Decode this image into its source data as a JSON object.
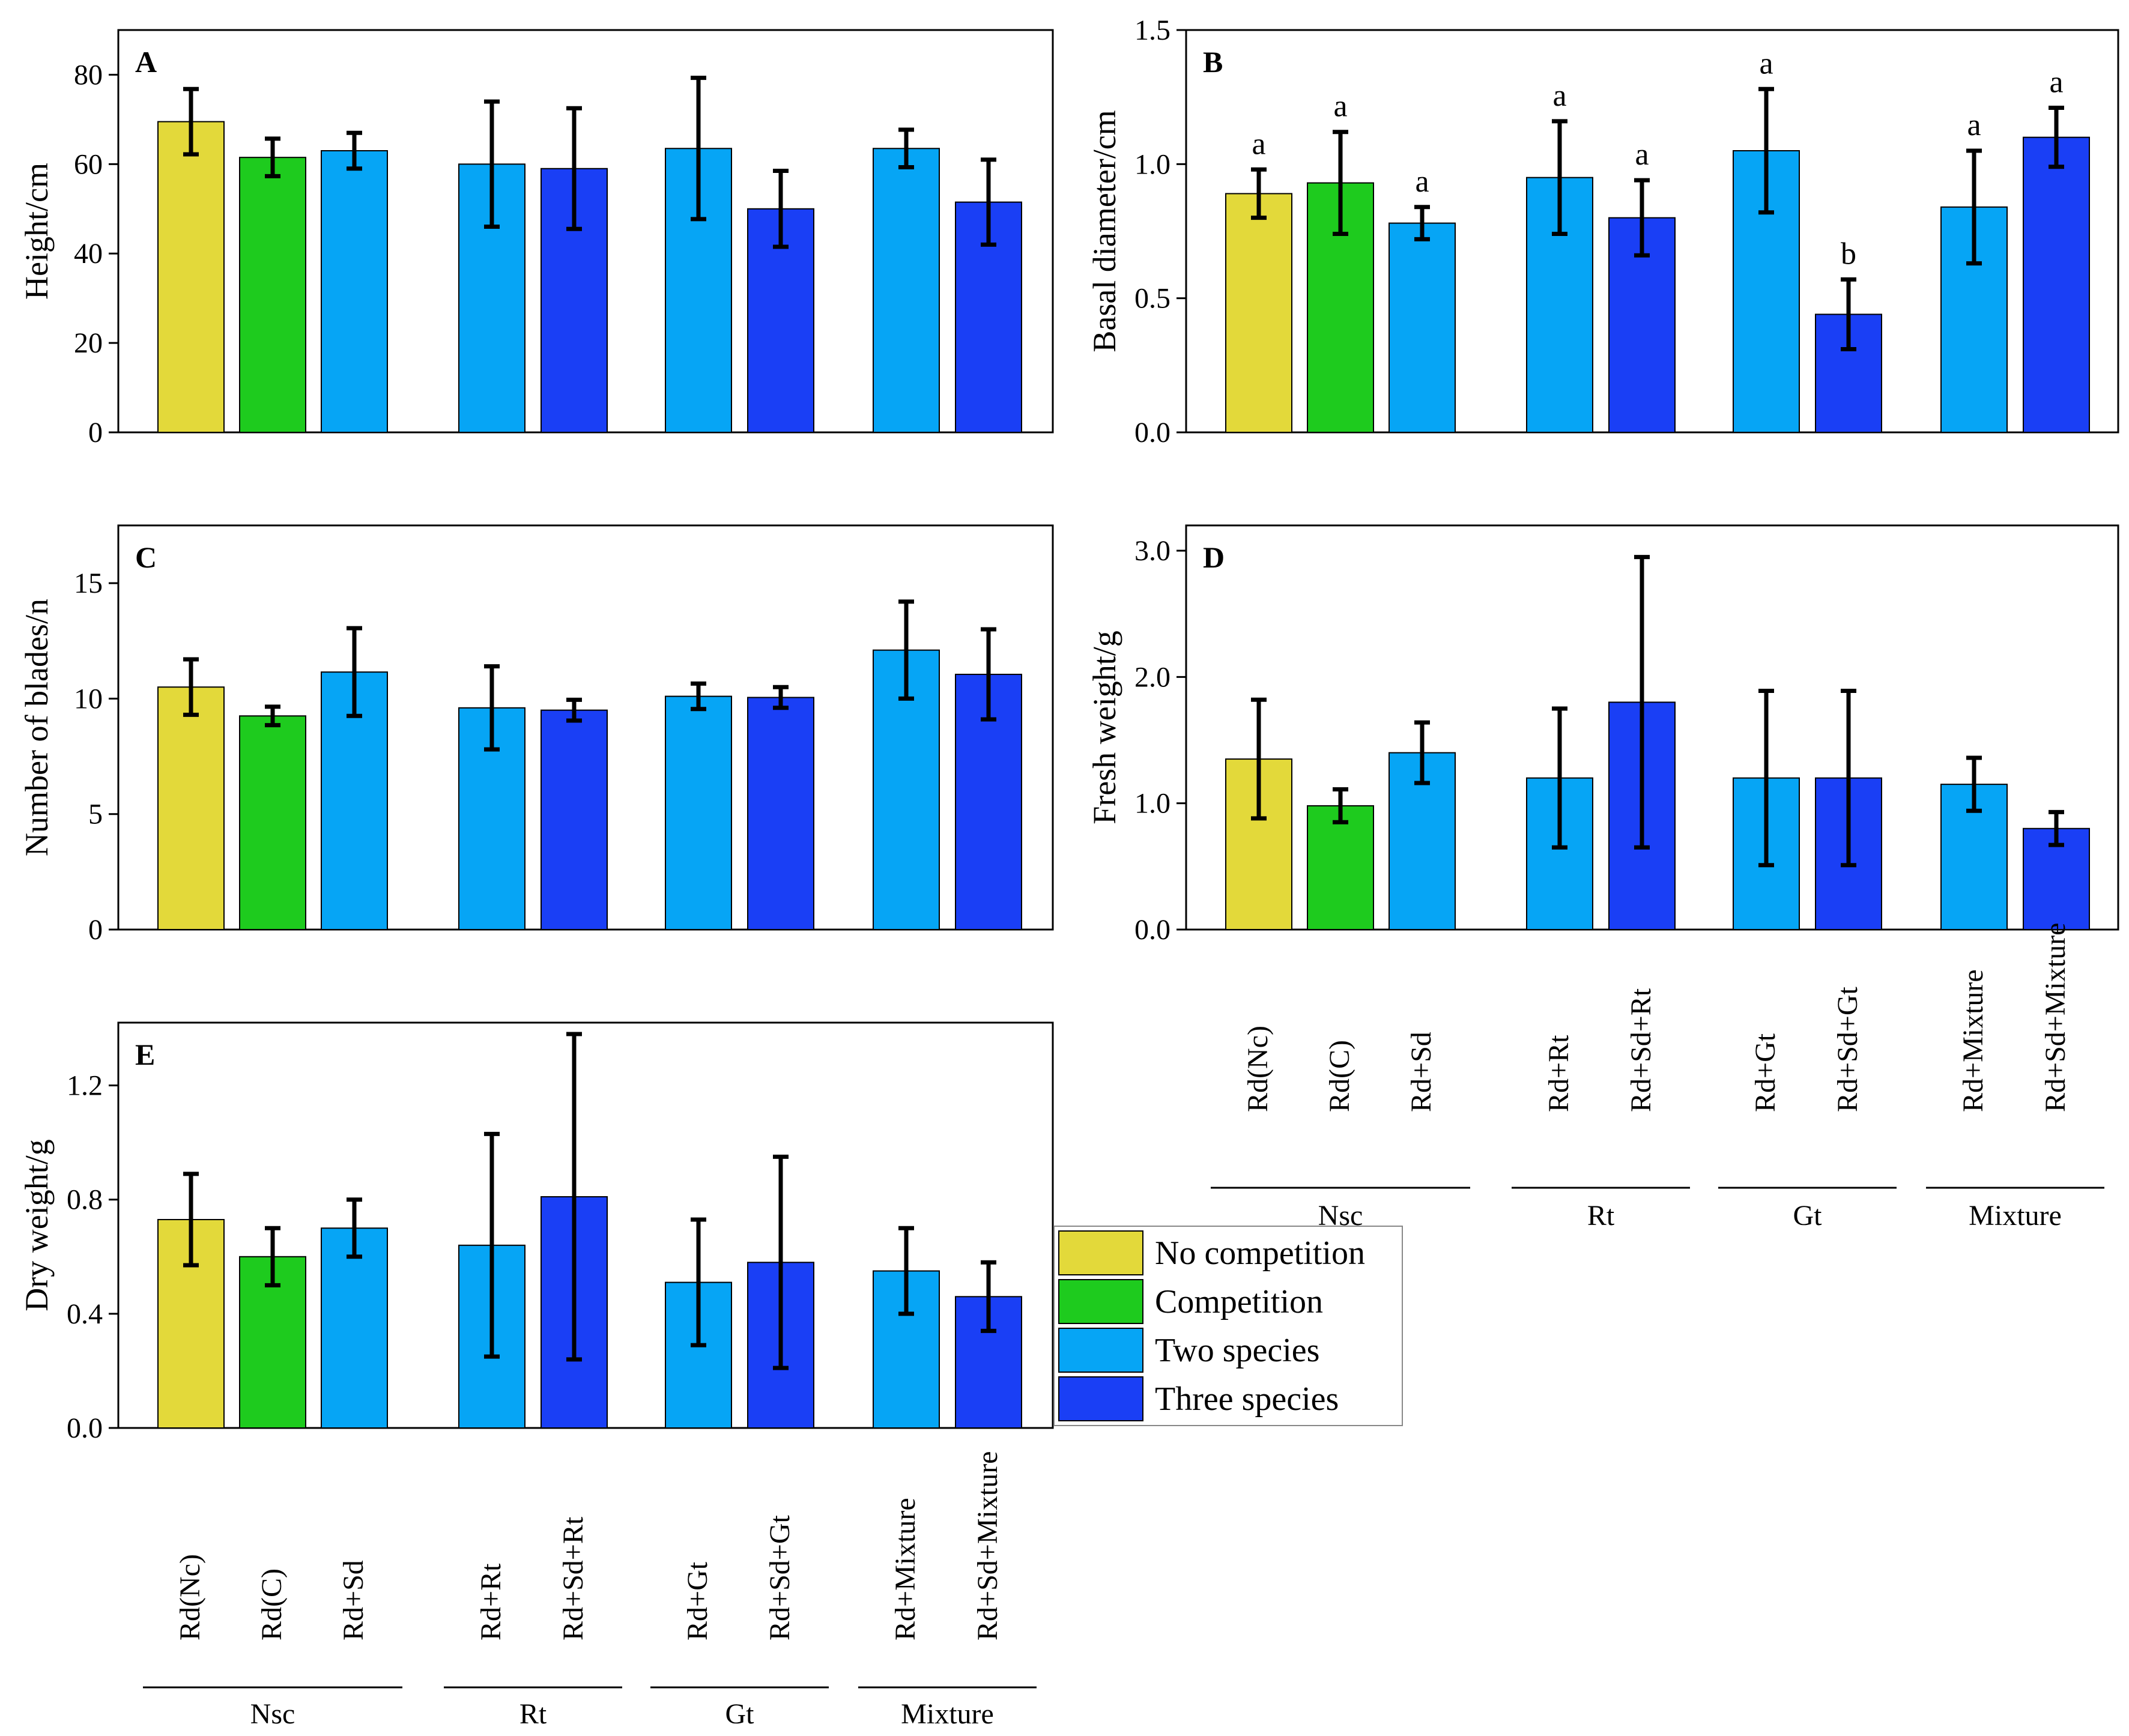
{
  "legend": {
    "items": [
      {
        "label": "No competition",
        "color": "#e3d93a"
      },
      {
        "label": "Competition",
        "color": "#1ecb1e"
      },
      {
        "label": "Two species",
        "color": "#06a5f5"
      },
      {
        "label": "Three species",
        "color": "#1a3ff5"
      }
    ]
  },
  "colors": {
    "no_competition": "#e3d93a",
    "competition": "#1ecb1e",
    "two_species": "#06a5f5",
    "three_species": "#1a3ff5",
    "frame": "#000000"
  },
  "x_axis": {
    "treatments": [
      "Rd(Nc)",
      "Rd(C)",
      "Rd+Sd",
      "Rd+Rt",
      "Rd+Sd+Rt",
      "Rd+Gt",
      "Rd+Sd+Gt",
      "Rd+Mixture",
      "Rd+Sd+Mixture"
    ],
    "groups": [
      {
        "label": "Nsc",
        "members": [
          0,
          1,
          2
        ]
      },
      {
        "label": "Rt",
        "members": [
          3,
          4
        ]
      },
      {
        "label": "Gt",
        "members": [
          5,
          6
        ]
      },
      {
        "label": "Mixture",
        "members": [
          7,
          8
        ]
      }
    ],
    "bar_series": [
      "no_competition",
      "competition",
      "two_species",
      "two_species",
      "three_species",
      "two_species",
      "three_species",
      "two_species",
      "three_species"
    ]
  },
  "chart_data": [
    {
      "type": "bar",
      "panel": "A",
      "ylabel": "Height/cm",
      "ylim": [
        0,
        90
      ],
      "yticks": [
        0,
        20,
        40,
        60,
        80
      ],
      "decimals": 0,
      "values": [
        69.5,
        61.5,
        63,
        60,
        59,
        63.5,
        50,
        63.5,
        51.5
      ],
      "errors": [
        7.3,
        4.2,
        4,
        14,
        13.5,
        15.8,
        8.5,
        4.2,
        9.5
      ],
      "annotations": []
    },
    {
      "type": "bar",
      "panel": "B",
      "ylabel": "Basal diameter/cm",
      "ylim": [
        0,
        1.5
      ],
      "yticks": [
        0.0,
        0.5,
        1.0,
        1.5
      ],
      "decimals": 1,
      "values": [
        0.89,
        0.93,
        0.78,
        0.95,
        0.8,
        1.05,
        0.44,
        0.84,
        1.1
      ],
      "errors": [
        0.09,
        0.19,
        0.06,
        0.21,
        0.14,
        0.23,
        0.13,
        0.21,
        0.11
      ],
      "annotations": [
        "a",
        "a",
        "a",
        "a",
        "a",
        "a",
        "b",
        "a",
        "a"
      ]
    },
    {
      "type": "bar",
      "panel": "C",
      "ylabel": "Number of blades/n",
      "ylim": [
        0,
        17.5
      ],
      "yticks": [
        0,
        5,
        10,
        15
      ],
      "decimals": 0,
      "values": [
        10.5,
        9.25,
        11.15,
        9.6,
        9.5,
        10.1,
        10.05,
        12.1,
        11.05
      ],
      "errors": [
        1.2,
        0.4,
        1.9,
        1.8,
        0.45,
        0.55,
        0.45,
        2.1,
        1.95
      ],
      "annotations": []
    },
    {
      "type": "bar",
      "panel": "D",
      "ylabel": "Fresh weight/g",
      "ylim": [
        0,
        3.2
      ],
      "yticks": [
        0.0,
        1.0,
        2.0,
        3.0
      ],
      "decimals": 1,
      "values": [
        1.35,
        0.98,
        1.4,
        1.2,
        1.8,
        1.2,
        1.2,
        1.15,
        0.8
      ],
      "errors": [
        0.47,
        0.13,
        0.24,
        0.55,
        1.15,
        0.69,
        0.69,
        0.21,
        0.13
      ],
      "annotations": []
    },
    {
      "type": "bar",
      "panel": "E",
      "ylabel": "Dry weight/g",
      "ylim": [
        0,
        1.42
      ],
      "yticks": [
        0.0,
        0.4,
        0.8,
        1.2
      ],
      "decimals": 1,
      "values": [
        0.73,
        0.6,
        0.7,
        0.64,
        0.81,
        0.51,
        0.58,
        0.55,
        0.46
      ],
      "errors": [
        0.16,
        0.1,
        0.1,
        0.39,
        0.57,
        0.22,
        0.37,
        0.15,
        0.12
      ],
      "annotations": []
    }
  ]
}
